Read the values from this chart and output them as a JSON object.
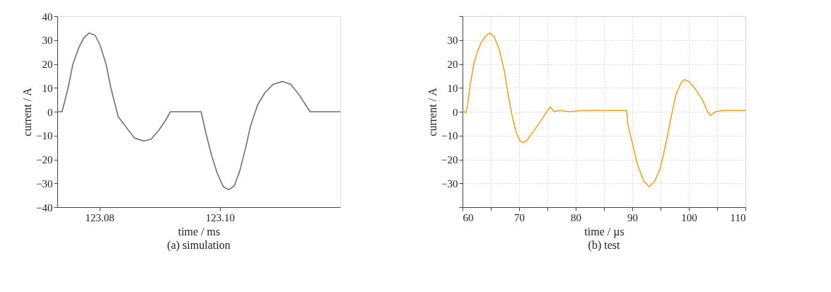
{
  "chart_data": [
    {
      "type": "line",
      "title": "(a) simulation",
      "xlabel": "time / ms",
      "ylabel": "current / A",
      "xlim": [
        123.073,
        123.12
      ],
      "xticks": [
        123.08,
        {
          "value": 123.1,
          "label": "123.10"
        }
      ],
      "ylim": [
        -40,
        40
      ],
      "yticks": [
        -40,
        -30,
        -20,
        -10,
        0,
        10,
        20,
        30,
        40
      ],
      "grid": false,
      "series": [
        {
          "color": "#707070",
          "x": [
            123.073,
            123.0738,
            123.0748,
            123.0756,
            123.0766,
            123.0774,
            123.0783,
            123.0793,
            123.0801,
            123.0811,
            123.0819,
            123.0827,
            123.0831,
            123.0843,
            123.0858,
            123.0874,
            123.0886,
            123.0898,
            123.0909,
            123.0918,
            123.0969,
            123.0976,
            123.0986,
            123.0996,
            123.1006,
            123.1015,
            123.1024,
            123.1033,
            123.1043,
            123.1051,
            123.1059,
            123.1063,
            123.1075,
            123.1089,
            123.1104,
            123.1118,
            123.1132,
            123.115,
            123.12
          ],
          "values": [
            0,
            0,
            10,
            20,
            27,
            31,
            33,
            32,
            28,
            20,
            10,
            2,
            -2,
            -6,
            -11,
            -12.3,
            -11.5,
            -8,
            -4,
            0,
            0,
            -8,
            -18,
            -26,
            -31.5,
            -32.7,
            -31,
            -25,
            -15,
            -6,
            0,
            3,
            8,
            11.5,
            12.7,
            11.5,
            7,
            0,
            0
          ]
        }
      ]
    },
    {
      "type": "line",
      "title": "(b) test",
      "xlabel": "time / µs",
      "ylabel": "current / A",
      "xlim": [
        60,
        110
      ],
      "xticks": [
        60,
        {
          "value": 65,
          "label": null
        },
        70,
        {
          "value": 75,
          "label": null
        },
        80,
        {
          "value": 85,
          "label": null
        },
        90,
        {
          "value": 95,
          "label": null
        },
        100,
        {
          "value": 105,
          "label": null
        },
        110
      ],
      "ylim": [
        -40,
        40
      ],
      "yticks": [
        {
          "value": -40,
          "label": null
        },
        -30,
        -20,
        -10,
        0,
        10,
        20,
        30,
        {
          "value": 40,
          "label": null
        }
      ],
      "grid": true,
      "series": [
        {
          "color": "#f7a21b",
          "x": [
            60,
            60.6,
            60.9,
            61.4,
            62.0,
            62.6,
            63.3,
            64.0,
            64.8,
            65.6,
            66.5,
            67.4,
            68.0,
            68.7,
            69.4,
            70.1,
            70.7,
            71.4,
            72.3,
            73.5,
            74.6,
            75.5,
            76.2,
            77.1,
            78.9,
            81.2,
            83.9,
            86.6,
            89.0,
            89.2,
            90.0,
            90.9,
            92.0,
            93.0,
            94.0,
            94.9,
            95.9,
            96.8,
            97.7,
            98.6,
            99.2,
            100.1,
            101.3,
            102.4,
            103.3,
            103.8,
            104.7,
            106.0,
            108.3,
            110.0
          ],
          "values": [
            0.5,
            -0.5,
            3,
            12,
            20,
            25,
            29,
            31.5,
            33,
            31.5,
            26,
            17,
            8,
            -1,
            -8,
            -12,
            -13,
            -12,
            -9,
            -5,
            -1,
            2,
            0,
            0.5,
            0,
            0.5,
            0.5,
            0.5,
            0.5,
            -5,
            -13,
            -22,
            -29,
            -31.5,
            -29,
            -24,
            -14,
            -3,
            7,
            12,
            13.5,
            12.5,
            9,
            5,
            0,
            -1.5,
            0,
            0.5,
            0.5,
            0.5
          ]
        }
      ]
    }
  ]
}
